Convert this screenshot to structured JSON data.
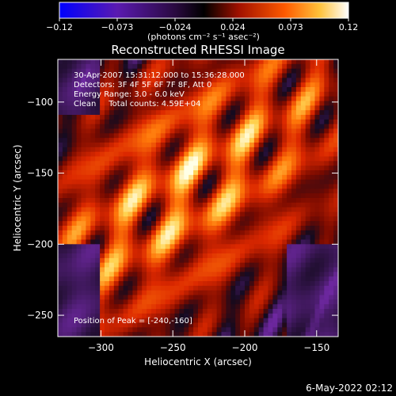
{
  "chart_data": [
    {
      "type": "heatmap",
      "title": "Reconstructed RHESSI Image",
      "xlabel": "Heliocentric X (arcsec)",
      "ylabel": "Heliocentric Y (arcsec)",
      "xlim": [
        -330,
        -135
      ],
      "ylim": [
        -265,
        -70
      ],
      "x_ticks": [
        -300,
        -250,
        -200,
        -150
      ],
      "y_ticks": [
        -100,
        -150,
        -200,
        -250
      ],
      "annotations": [
        "30-Apr-2007 15:31:12.000 to 15:36:28.000",
        "Detectors: 3F 4F 5F 6F 7F 8F, Att 0",
        "Energy Range: 3.0 - 6.0 keV",
        "Clean     Total counts: 4.59E+04"
      ],
      "peak_label": "Position of Peak = [-240,-160]",
      "peak": [
        -240,
        -160
      ],
      "grid": false
    },
    {
      "type": "colorbar",
      "units_label": "(photons cm⁻² s⁻¹ asec⁻²)",
      "range": [
        -0.12,
        0.12
      ],
      "tick_labels": [
        "-0.12",
        "-0.073",
        "-0.024",
        "0.024",
        "0.073",
        "0.12"
      ]
    }
  ],
  "footer": {
    "date": "6-May-2022 02:12"
  },
  "colors": {
    "background": "#000000",
    "colorbar_stops": [
      "#0000ff",
      "#4b1a9a",
      "#000000",
      "#a31000",
      "#ff6a00",
      "#ffd24a",
      "#ffffff"
    ]
  }
}
